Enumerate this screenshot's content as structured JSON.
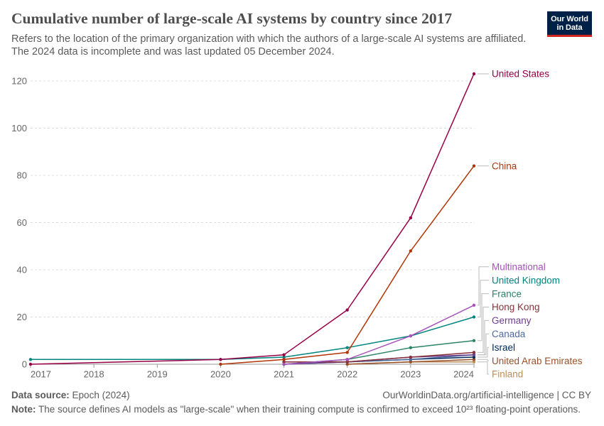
{
  "chart_data": {
    "type": "line",
    "title": "Cumulative number of large-scale AI systems by country since 2017",
    "subtitle": [
      "Refers to the location of the primary organization with which the authors of a large-scale AI systems are affiliated.",
      "The 2024 data is incomplete and was last updated 05 December 2024."
    ],
    "x_ticks": [
      2017,
      2018,
      2019,
      2020,
      2021,
      2022,
      2023,
      2024
    ],
    "y_ticks": [
      0,
      20,
      40,
      60,
      80,
      100,
      120
    ],
    "xlim": [
      2017,
      2024
    ],
    "ylim": [
      0,
      123
    ],
    "grid": true,
    "legend": "right",
    "series": [
      {
        "name": "United States",
        "color": "#970046",
        "x": [
          2017,
          2020,
          2021,
          2022,
          2023,
          2024
        ],
        "y": [
          0,
          2,
          4,
          23,
          62,
          123
        ]
      },
      {
        "name": "China",
        "color": "#b13507",
        "x": [
          2020,
          2021,
          2022,
          2023,
          2024
        ],
        "y": [
          0,
          2,
          5,
          48,
          84
        ]
      },
      {
        "name": "Multinational",
        "color": "#a652ba",
        "x": [
          2021,
          2022,
          2023,
          2024
        ],
        "y": [
          0,
          2,
          12,
          25
        ]
      },
      {
        "name": "United Kingdom",
        "color": "#00847e",
        "x": [
          2017,
          2020,
          2021,
          2022,
          2023,
          2024
        ],
        "y": [
          2,
          2,
          3,
          7,
          12,
          20
        ]
      },
      {
        "name": "France",
        "color": "#2c8465",
        "x": [
          2021,
          2022,
          2023,
          2024
        ],
        "y": [
          0,
          2,
          7,
          10
        ]
      },
      {
        "name": "Hong Kong",
        "color": "#883039",
        "x": [
          2021,
          2022,
          2023,
          2024
        ],
        "y": [
          1,
          1,
          3,
          5
        ]
      },
      {
        "name": "Germany",
        "color": "#6d3e91",
        "x": [
          2021,
          2022,
          2023,
          2024
        ],
        "y": [
          0,
          1,
          3,
          4
        ]
      },
      {
        "name": "Canada",
        "color": "#4c6a9c",
        "x": [
          2021,
          2022,
          2023,
          2024
        ],
        "y": [
          0,
          1,
          2,
          4
        ]
      },
      {
        "name": "Israel",
        "color": "#00295b",
        "x": [
          2021,
          2022,
          2023,
          2024
        ],
        "y": [
          1,
          1,
          2,
          3
        ]
      },
      {
        "name": "United Arab Emirates",
        "color": "#9a5129",
        "x": [
          2022,
          2023,
          2024
        ],
        "y": [
          0,
          1,
          2
        ]
      },
      {
        "name": "Finland",
        "color": "#bc8e5a",
        "x": [
          2022,
          2023,
          2024
        ],
        "y": [
          0,
          1,
          1
        ]
      }
    ]
  },
  "logo": {
    "line1": "Our World",
    "line2": "in Data",
    "background": "#002147",
    "stripe": "#ce261e"
  },
  "footer": {
    "source_label": "Data source:",
    "source_value": "Epoch (2024)",
    "link": "OurWorldinData.org/artificial-intelligence | CC BY",
    "note_label": "Note:",
    "note_value": "The source defines AI models as \"large-scale\" when their training compute is confirmed to exceed 10²³ floating-point operations."
  }
}
